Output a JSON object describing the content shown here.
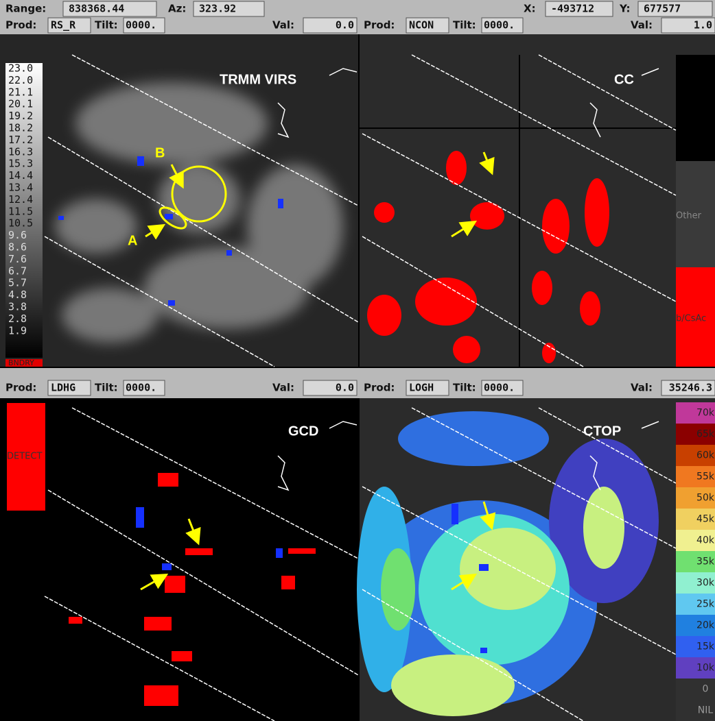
{
  "header": {
    "range_label": "Range:",
    "range": "838368.44",
    "az_label": "Az:",
    "az": "323.92",
    "x_label": "X:",
    "x": "-493712",
    "y_label": "Y:",
    "y": "677577"
  },
  "panels": [
    {
      "prod_label": "Prod:",
      "prod": "RS_R",
      "tilt_label": "Tilt:",
      "tilt": "0000.",
      "val_label": "Val:",
      "val": "0.0",
      "title": "TRMM VIRS",
      "legend": [
        "23.0",
        "22.0",
        "21.1",
        "20.1",
        "19.2",
        "18.2",
        "17.2",
        "16.3",
        "15.3",
        "14.4",
        "13.4",
        "12.4",
        "11.5",
        "10.5",
        "9.6",
        "8.6",
        "7.6",
        "6.7",
        "5.7",
        "4.8",
        "3.8",
        "2.8",
        "1.9"
      ],
      "legend_footer": "BNDRY",
      "annotations": [
        "A",
        "B"
      ]
    },
    {
      "prod_label": "Prod:",
      "prod": "NCON",
      "tilt_label": "Tilt:",
      "tilt": "0000.",
      "val_label": "Val:",
      "val": "1.0",
      "title": "CC",
      "legend": [
        "Other",
        "b/CsAc"
      ]
    },
    {
      "prod_label": "Prod:",
      "prod": "LDHG",
      "tilt_label": "Tilt:",
      "tilt": "0000.",
      "val_label": "Val:",
      "val": "0.0",
      "title": "GCD",
      "legend": [
        "DETECT"
      ]
    },
    {
      "prod_label": "Prod:",
      "prod": "LOGH",
      "tilt_label": "Tilt:",
      "tilt": "0000.",
      "val_label": "Val:",
      "val": "35246.3",
      "title": "CTOP",
      "legend": [
        "70k",
        "65k",
        "60k",
        "55k",
        "50k",
        "45k",
        "40k",
        "35k",
        "30k",
        "25k",
        "20k",
        "15k",
        "10k",
        "0",
        "NIL"
      ]
    }
  ]
}
